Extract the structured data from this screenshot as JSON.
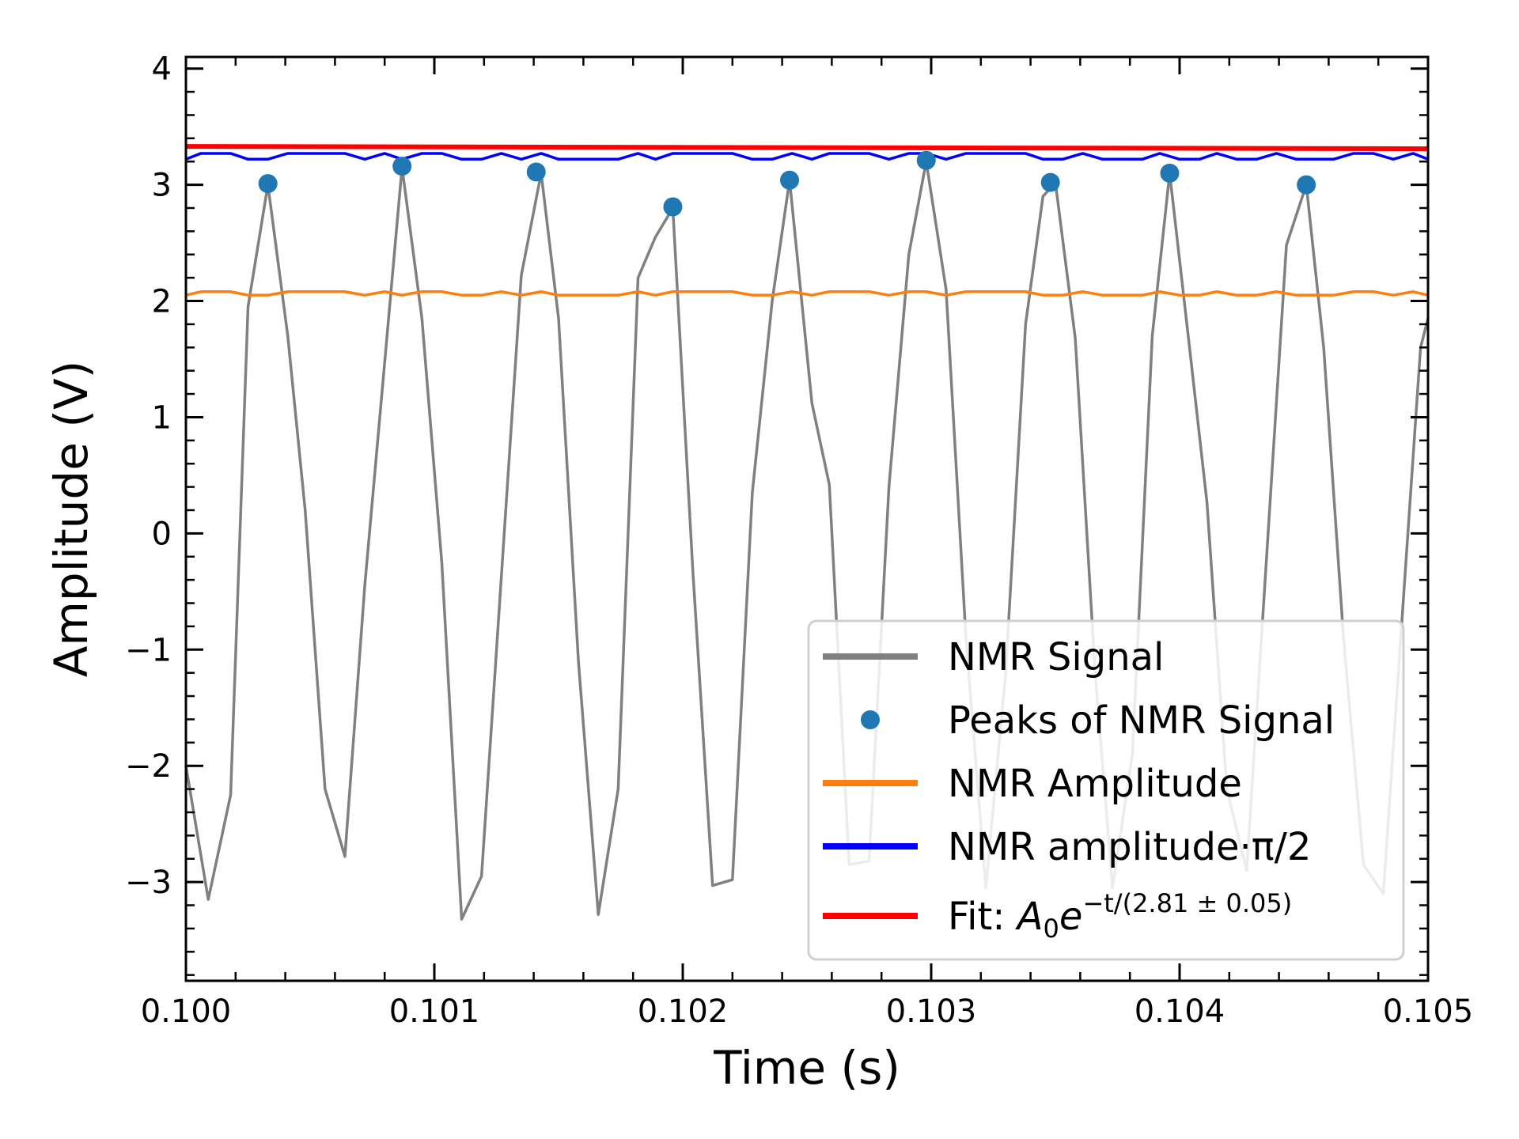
{
  "chart_data": {
    "type": "line",
    "title": "",
    "xlabel": "Time (s)",
    "ylabel": "Amplitude (V)",
    "xlim": [
      0.1,
      0.105
    ],
    "ylim": [
      -3.85,
      4.1
    ],
    "x_ticks": [
      0.1,
      0.101,
      0.102,
      0.103,
      0.104,
      0.105
    ],
    "x_tick_labels": [
      "0.100",
      "0.101",
      "0.102",
      "0.103",
      "0.104",
      "0.105"
    ],
    "y_ticks": [
      -3,
      -2,
      -1,
      0,
      1,
      2,
      3,
      4
    ],
    "y_tick_labels": [
      "−3",
      "−2",
      "−1",
      "0",
      "1",
      "2",
      "3",
      "4"
    ],
    "grid": false,
    "legend_position": "bottom-right",
    "series": [
      {
        "name": "NMR Signal",
        "kind": "line",
        "color": "#808080",
        "points": [
          [
            0.1,
            -2.0
          ],
          [
            0.10009,
            -3.15
          ],
          [
            0.10018,
            -2.25
          ],
          [
            0.10025,
            1.95
          ],
          [
            0.10033,
            3.0
          ],
          [
            0.10041,
            1.7
          ],
          [
            0.10048,
            0.2
          ],
          [
            0.10056,
            -2.2
          ],
          [
            0.10064,
            -2.78
          ],
          [
            0.10072,
            -0.45
          ],
          [
            0.10087,
            3.15
          ],
          [
            0.10095,
            1.85
          ],
          [
            0.10103,
            -0.25
          ],
          [
            0.10111,
            -3.32
          ],
          [
            0.10119,
            -2.95
          ],
          [
            0.10135,
            2.22
          ],
          [
            0.10143,
            3.1
          ],
          [
            0.1015,
            1.85
          ],
          [
            0.10158,
            -1.1
          ],
          [
            0.10166,
            -3.28
          ],
          [
            0.10174,
            -2.2
          ],
          [
            0.10182,
            2.2
          ],
          [
            0.10189,
            2.55
          ],
          [
            0.10196,
            2.8
          ],
          [
            0.10204,
            -0.3
          ],
          [
            0.10212,
            -3.03
          ],
          [
            0.1022,
            -2.98
          ],
          [
            0.10228,
            0.35
          ],
          [
            0.10236,
            2.0
          ],
          [
            0.10243,
            3.04
          ],
          [
            0.10252,
            1.12
          ],
          [
            0.10259,
            0.42
          ],
          [
            0.10267,
            -2.85
          ],
          [
            0.10275,
            -2.82
          ],
          [
            0.10283,
            0.4
          ],
          [
            0.10291,
            2.4
          ],
          [
            0.10298,
            3.2
          ],
          [
            0.10306,
            2.1
          ],
          [
            0.10314,
            -0.9
          ],
          [
            0.10322,
            -3.05
          ],
          [
            0.1033,
            -1.2
          ],
          [
            0.10338,
            1.8
          ],
          [
            0.10345,
            2.9
          ],
          [
            0.1035,
            3.02
          ],
          [
            0.10358,
            1.68
          ],
          [
            0.10366,
            -1.2
          ],
          [
            0.10373,
            -3.05
          ],
          [
            0.10381,
            -1.9
          ],
          [
            0.10389,
            1.7
          ],
          [
            0.10396,
            3.1
          ],
          [
            0.10404,
            1.6
          ],
          [
            0.10411,
            0.27
          ],
          [
            0.10419,
            -2.2
          ],
          [
            0.10427,
            -2.9
          ],
          [
            0.10443,
            2.48
          ],
          [
            0.10451,
            3.0
          ],
          [
            0.10458,
            1.6
          ],
          [
            0.10466,
            -0.9
          ],
          [
            0.10474,
            -2.85
          ],
          [
            0.10482,
            -3.1
          ],
          [
            0.10497,
            1.6
          ],
          [
            0.105,
            1.85
          ]
        ]
      },
      {
        "name": "Peaks of NMR Signal",
        "kind": "scatter",
        "color": "#1f77b4",
        "points": [
          [
            0.10033,
            3.01
          ],
          [
            0.10087,
            3.16
          ],
          [
            0.10141,
            3.11
          ],
          [
            0.10196,
            2.81
          ],
          [
            0.10243,
            3.04
          ],
          [
            0.10298,
            3.21
          ],
          [
            0.10348,
            3.02
          ],
          [
            0.10396,
            3.1
          ],
          [
            0.10451,
            3.0
          ]
        ]
      },
      {
        "name": "NMR Amplitude",
        "kind": "line",
        "color": "#ff7f0e",
        "points": [
          [
            0.1,
            2.05
          ],
          [
            0.10006,
            2.08
          ],
          [
            0.10018,
            2.08
          ],
          [
            0.10025,
            2.05
          ],
          [
            0.10033,
            2.05
          ],
          [
            0.10041,
            2.08
          ],
          [
            0.10064,
            2.08
          ],
          [
            0.10072,
            2.05
          ],
          [
            0.1008,
            2.08
          ],
          [
            0.10087,
            2.05
          ],
          [
            0.10095,
            2.08
          ],
          [
            0.10103,
            2.08
          ],
          [
            0.10111,
            2.05
          ],
          [
            0.10119,
            2.05
          ],
          [
            0.10127,
            2.08
          ],
          [
            0.10135,
            2.05
          ],
          [
            0.10143,
            2.08
          ],
          [
            0.1015,
            2.05
          ],
          [
            0.10174,
            2.05
          ],
          [
            0.10182,
            2.08
          ],
          [
            0.10189,
            2.05
          ],
          [
            0.10196,
            2.08
          ],
          [
            0.1022,
            2.08
          ],
          [
            0.10228,
            2.05
          ],
          [
            0.10236,
            2.05
          ],
          [
            0.10244,
            2.08
          ],
          [
            0.10252,
            2.05
          ],
          [
            0.10259,
            2.08
          ],
          [
            0.10275,
            2.08
          ],
          [
            0.10283,
            2.05
          ],
          [
            0.10291,
            2.08
          ],
          [
            0.10298,
            2.08
          ],
          [
            0.10306,
            2.05
          ],
          [
            0.10314,
            2.08
          ],
          [
            0.10338,
            2.08
          ],
          [
            0.10345,
            2.05
          ],
          [
            0.10353,
            2.05
          ],
          [
            0.10361,
            2.08
          ],
          [
            0.10369,
            2.05
          ],
          [
            0.10385,
            2.05
          ],
          [
            0.10392,
            2.08
          ],
          [
            0.104,
            2.05
          ],
          [
            0.10408,
            2.05
          ],
          [
            0.10415,
            2.08
          ],
          [
            0.10423,
            2.05
          ],
          [
            0.10431,
            2.05
          ],
          [
            0.10439,
            2.08
          ],
          [
            0.10447,
            2.05
          ],
          [
            0.10462,
            2.05
          ],
          [
            0.1047,
            2.08
          ],
          [
            0.10478,
            2.08
          ],
          [
            0.10486,
            2.05
          ],
          [
            0.10494,
            2.08
          ],
          [
            0.105,
            2.05
          ]
        ]
      },
      {
        "name": "NMR amplitude·π/2",
        "kind": "line",
        "color": "#0000ff",
        "points": [
          [
            0.1,
            3.22
          ],
          [
            0.10006,
            3.27
          ],
          [
            0.10018,
            3.27
          ],
          [
            0.10025,
            3.22
          ],
          [
            0.10033,
            3.22
          ],
          [
            0.10041,
            3.27
          ],
          [
            0.10064,
            3.27
          ],
          [
            0.10072,
            3.22
          ],
          [
            0.1008,
            3.27
          ],
          [
            0.10087,
            3.22
          ],
          [
            0.10095,
            3.27
          ],
          [
            0.10103,
            3.27
          ],
          [
            0.10111,
            3.22
          ],
          [
            0.10119,
            3.22
          ],
          [
            0.10127,
            3.27
          ],
          [
            0.10135,
            3.22
          ],
          [
            0.10143,
            3.27
          ],
          [
            0.1015,
            3.22
          ],
          [
            0.10174,
            3.22
          ],
          [
            0.10182,
            3.27
          ],
          [
            0.10189,
            3.22
          ],
          [
            0.10196,
            3.27
          ],
          [
            0.1022,
            3.27
          ],
          [
            0.10228,
            3.22
          ],
          [
            0.10236,
            3.22
          ],
          [
            0.10244,
            3.27
          ],
          [
            0.10252,
            3.22
          ],
          [
            0.10259,
            3.27
          ],
          [
            0.10275,
            3.27
          ],
          [
            0.10283,
            3.22
          ],
          [
            0.10291,
            3.27
          ],
          [
            0.10298,
            3.27
          ],
          [
            0.10306,
            3.22
          ],
          [
            0.10314,
            3.27
          ],
          [
            0.10338,
            3.27
          ],
          [
            0.10345,
            3.22
          ],
          [
            0.10353,
            3.22
          ],
          [
            0.10361,
            3.27
          ],
          [
            0.10369,
            3.22
          ],
          [
            0.10385,
            3.22
          ],
          [
            0.10392,
            3.27
          ],
          [
            0.104,
            3.22
          ],
          [
            0.10408,
            3.22
          ],
          [
            0.10415,
            3.27
          ],
          [
            0.10423,
            3.22
          ],
          [
            0.10431,
            3.22
          ],
          [
            0.10439,
            3.27
          ],
          [
            0.10447,
            3.22
          ],
          [
            0.10462,
            3.22
          ],
          [
            0.1047,
            3.27
          ],
          [
            0.10478,
            3.27
          ],
          [
            0.10486,
            3.22
          ],
          [
            0.10494,
            3.27
          ],
          [
            0.105,
            3.22
          ]
        ]
      },
      {
        "name": "Fit",
        "kind": "line",
        "color": "#ff0000",
        "points": [
          [
            0.1,
            3.33
          ],
          [
            0.105,
            3.31
          ]
        ]
      }
    ],
    "legend": [
      {
        "label": "NMR Signal",
        "color": "#808080",
        "marker": "line"
      },
      {
        "label": "Peaks of NMR Signal",
        "color": "#1f77b4",
        "marker": "dot"
      },
      {
        "label": "NMR Amplitude",
        "color": "#ff7f0e",
        "marker": "line"
      },
      {
        "label": "NMR amplitude·π/2",
        "color": "#0000ff",
        "marker": "line"
      },
      {
        "label_prefix": "Fit: ",
        "label_math_base": "A",
        "label_math_sub": "0",
        "label_math_e": "e",
        "label_math_sup": "−t/(2.81 ± 0.05)",
        "color": "#ff0000",
        "marker": "line"
      }
    ]
  }
}
